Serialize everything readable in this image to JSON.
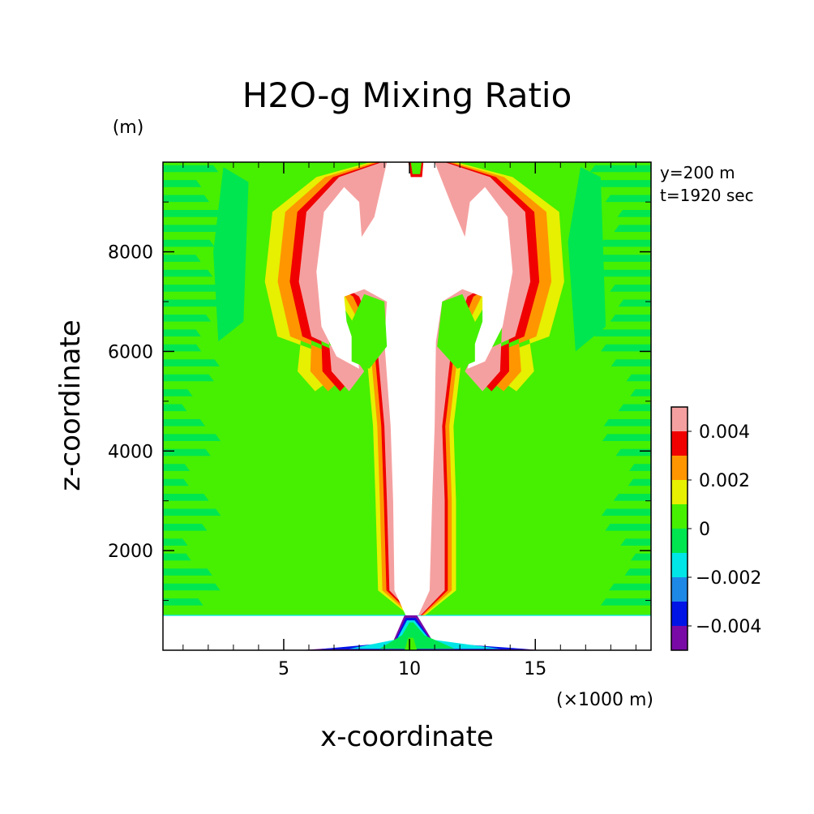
{
  "chart_data": {
    "type": "heatmap",
    "title": "H2O-g Mixing Ratio",
    "xlabel": "x-coordinate",
    "ylabel": "z-coordinate",
    "x_units": "(×1000 m)",
    "y_units": "(m)",
    "annotations": [
      "y=200 m",
      "t=1920 sec"
    ],
    "xlim": [
      0.2,
      19.6
    ],
    "ylim": [
      0,
      9800
    ],
    "x_ticks": [
      5,
      10,
      15
    ],
    "y_ticks": [
      2000,
      4000,
      6000,
      8000
    ],
    "grid": false,
    "colorbar": {
      "placement": "right",
      "levels": [
        -0.005,
        -0.004,
        -0.003,
        -0.002,
        -0.001,
        0,
        0.001,
        0.002,
        0.003,
        0.004,
        0.005
      ],
      "colors": [
        "#7a0aa6",
        "#0014e6",
        "#1e88e6",
        "#00e6e6",
        "#00e650",
        "#46f000",
        "#e6f000",
        "#ff9600",
        "#f00000",
        "#f5a0a0"
      ],
      "tick_labels": [
        {
          "value": -0.004,
          "label": "−0.004"
        },
        {
          "value": -0.002,
          "label": "−0.002"
        },
        {
          "value": 0,
          "label": "0"
        },
        {
          "value": 0.002,
          "label": "0.002"
        },
        {
          "value": 0.004,
          "label": "0.004"
        }
      ]
    },
    "undefined_color": "#ffffff",
    "ground_band_top": 700,
    "plume": {
      "trunk": [
        [
          10.0,
          700
        ],
        [
          10.6,
          3000
        ],
        [
          10.4,
          6000
        ],
        [
          9.9,
          7300
        ]
      ],
      "cap_top": 9800,
      "lobes_x": [
        8.0,
        12.8
      ],
      "lobe_bottom": 5200
    }
  }
}
